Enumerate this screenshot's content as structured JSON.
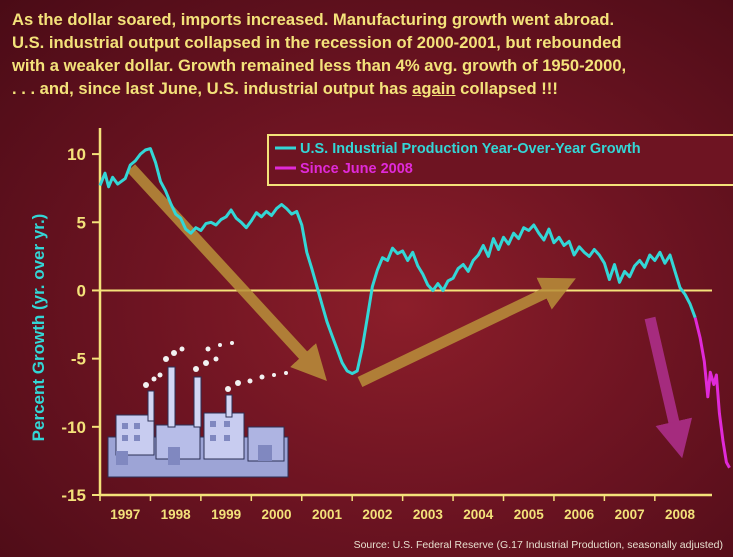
{
  "heading": {
    "line1": "As the dollar soared, imports increased. Manufacturing growth went abroad.",
    "line2": "U.S. industrial output collapsed in the recession of 2000-2001, but rebounded",
    "line3": "with a weaker dollar. Growth remained less than 4% avg. growth of 1950-2000,",
    "line4_before": ". . . and, since last June, U.S. industrial output has ",
    "line4_emph": "again",
    "line4_after": " collapsed !!!"
  },
  "source": "Source:  U.S. Federal Reserve (G.17 Industrial Production, seasonally adjusted)",
  "annotation": "!",
  "colors": {
    "background": "#6e1422",
    "heading": "#f4e27a",
    "axis": "#f4e27a",
    "series_main": "#33d6d6",
    "series_recent": "#e02ad8",
    "trend_arrow": "#b9903a",
    "recent_arrow": "#b0308f",
    "ylabel": "#33d6d6"
  },
  "chart_data": {
    "type": "line",
    "title": "",
    "xlabel": "",
    "ylabel": "Percent Growth (yr. over yr.)",
    "ylim": [
      -15,
      12.5
    ],
    "yticks": [
      10,
      5,
      0,
      -5,
      -10,
      -15
    ],
    "xlim": [
      1996.5,
      2009.05
    ],
    "xticks": [
      1997,
      1998,
      1999,
      2000,
      2001,
      2002,
      2003,
      2004,
      2005,
      2006,
      2007,
      2008
    ],
    "zero_line": true,
    "legend": "top-right",
    "series": [
      {
        "name": "U.S. Industrial Production Year-Over-Year Growth",
        "points": [
          [
            1996.5,
            7.7
          ],
          [
            1996.6,
            8.6
          ],
          [
            1996.67,
            7.6
          ],
          [
            1996.75,
            8.3
          ],
          [
            1996.85,
            7.8
          ],
          [
            1997.0,
            8.2
          ],
          [
            1997.1,
            9.2
          ],
          [
            1997.2,
            9.5
          ],
          [
            1997.3,
            10.0
          ],
          [
            1997.4,
            10.3
          ],
          [
            1997.5,
            10.4
          ],
          [
            1997.6,
            9.4
          ],
          [
            1997.7,
            8.0
          ],
          [
            1997.8,
            7.3
          ],
          [
            1997.9,
            6.4
          ],
          [
            1998.0,
            5.6
          ],
          [
            1998.1,
            5.3
          ],
          [
            1998.2,
            4.5
          ],
          [
            1998.3,
            4.2
          ],
          [
            1998.4,
            4.6
          ],
          [
            1998.5,
            4.4
          ],
          [
            1998.6,
            4.9
          ],
          [
            1998.7,
            5.0
          ],
          [
            1998.8,
            4.8
          ],
          [
            1998.9,
            5.2
          ],
          [
            1999.0,
            5.4
          ],
          [
            1999.1,
            5.9
          ],
          [
            1999.2,
            5.3
          ],
          [
            1999.3,
            5.0
          ],
          [
            1999.4,
            4.6
          ],
          [
            1999.5,
            5.1
          ],
          [
            1999.6,
            5.7
          ],
          [
            1999.7,
            5.4
          ],
          [
            1999.8,
            5.8
          ],
          [
            1999.9,
            5.5
          ],
          [
            2000.0,
            6.0
          ],
          [
            2000.1,
            6.3
          ],
          [
            2000.2,
            6.0
          ],
          [
            2000.3,
            5.6
          ],
          [
            2000.4,
            5.8
          ],
          [
            2000.5,
            4.8
          ],
          [
            2000.6,
            2.8
          ],
          [
            2000.7,
            1.6
          ],
          [
            2000.8,
            0.3
          ],
          [
            2000.9,
            -1.0
          ],
          [
            2001.0,
            -2.3
          ],
          [
            2001.1,
            -3.3
          ],
          [
            2001.2,
            -4.3
          ],
          [
            2001.3,
            -5.3
          ],
          [
            2001.4,
            -5.9
          ],
          [
            2001.5,
            -6.1
          ],
          [
            2001.6,
            -5.9
          ],
          [
            2001.7,
            -4.2
          ],
          [
            2001.8,
            -2.0
          ],
          [
            2001.9,
            0.3
          ],
          [
            2002.0,
            1.5
          ],
          [
            2002.1,
            2.4
          ],
          [
            2002.2,
            2.2
          ],
          [
            2002.3,
            3.1
          ],
          [
            2002.4,
            2.7
          ],
          [
            2002.5,
            2.9
          ],
          [
            2002.6,
            2.2
          ],
          [
            2002.7,
            2.8
          ],
          [
            2002.8,
            1.8
          ],
          [
            2002.9,
            1.2
          ],
          [
            2003.0,
            0.4
          ],
          [
            2003.1,
            0.0
          ],
          [
            2003.2,
            0.5
          ],
          [
            2003.3,
            0.0
          ],
          [
            2003.4,
            0.7
          ],
          [
            2003.5,
            0.9
          ],
          [
            2003.6,
            1.6
          ],
          [
            2003.7,
            1.9
          ],
          [
            2003.8,
            1.4
          ],
          [
            2003.9,
            2.2
          ],
          [
            2004.0,
            2.6
          ],
          [
            2004.1,
            3.3
          ],
          [
            2004.2,
            2.5
          ],
          [
            2004.3,
            3.8
          ],
          [
            2004.4,
            3.0
          ],
          [
            2004.5,
            3.9
          ],
          [
            2004.6,
            3.4
          ],
          [
            2004.7,
            4.2
          ],
          [
            2004.8,
            3.8
          ],
          [
            2004.9,
            4.6
          ],
          [
            2005.0,
            4.4
          ],
          [
            2005.1,
            4.8
          ],
          [
            2005.2,
            4.2
          ],
          [
            2005.3,
            3.7
          ],
          [
            2005.4,
            4.5
          ],
          [
            2005.5,
            3.5
          ],
          [
            2005.6,
            3.9
          ],
          [
            2005.7,
            3.3
          ],
          [
            2005.8,
            3.6
          ],
          [
            2005.9,
            2.6
          ],
          [
            2006.0,
            3.2
          ],
          [
            2006.1,
            2.8
          ],
          [
            2006.2,
            2.5
          ],
          [
            2006.3,
            3.0
          ],
          [
            2006.4,
            2.6
          ],
          [
            2006.5,
            2.0
          ],
          [
            2006.6,
            0.8
          ],
          [
            2006.7,
            1.9
          ],
          [
            2006.8,
            0.6
          ],
          [
            2006.9,
            1.4
          ],
          [
            2007.0,
            1.0
          ],
          [
            2007.1,
            1.8
          ],
          [
            2007.2,
            2.2
          ],
          [
            2007.3,
            1.7
          ],
          [
            2007.4,
            2.6
          ],
          [
            2007.5,
            2.2
          ],
          [
            2007.6,
            2.8
          ],
          [
            2007.7,
            2.0
          ],
          [
            2007.8,
            2.6
          ],
          [
            2007.9,
            1.4
          ],
          [
            2008.0,
            0.2
          ],
          [
            2008.1,
            -0.3
          ],
          [
            2008.2,
            -1.0
          ],
          [
            2008.3,
            -2.0
          ]
        ]
      },
      {
        "name": "Since June 2008",
        "points": [
          [
            2008.3,
            -2.0
          ],
          [
            2008.4,
            -3.5
          ],
          [
            2008.48,
            -5.2
          ],
          [
            2008.55,
            -7.8
          ],
          [
            2008.6,
            -6.0
          ],
          [
            2008.67,
            -6.9
          ],
          [
            2008.72,
            -6.2
          ],
          [
            2008.78,
            -9.0
          ],
          [
            2008.85,
            -11.0
          ],
          [
            2008.92,
            -12.6
          ],
          [
            2008.98,
            -13.0
          ]
        ]
      }
    ]
  }
}
